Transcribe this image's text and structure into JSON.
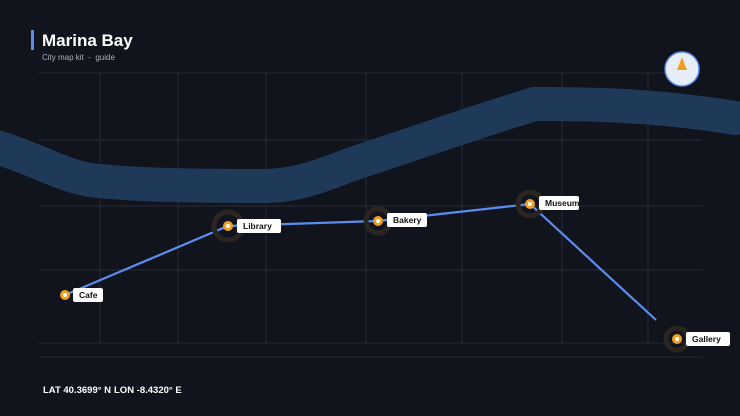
{
  "header": {
    "title": "Marina Bay",
    "subtitle": "City map kit  -  guide"
  },
  "places": [
    {
      "label": "Cafe"
    },
    {
      "label": "Library"
    },
    {
      "label": "Bakery"
    },
    {
      "label": "Museum"
    },
    {
      "label": "Gallery"
    }
  ],
  "footer": {
    "lat": "LAT 40.3699° N",
    "lon": "LON -8.4320° E"
  }
}
